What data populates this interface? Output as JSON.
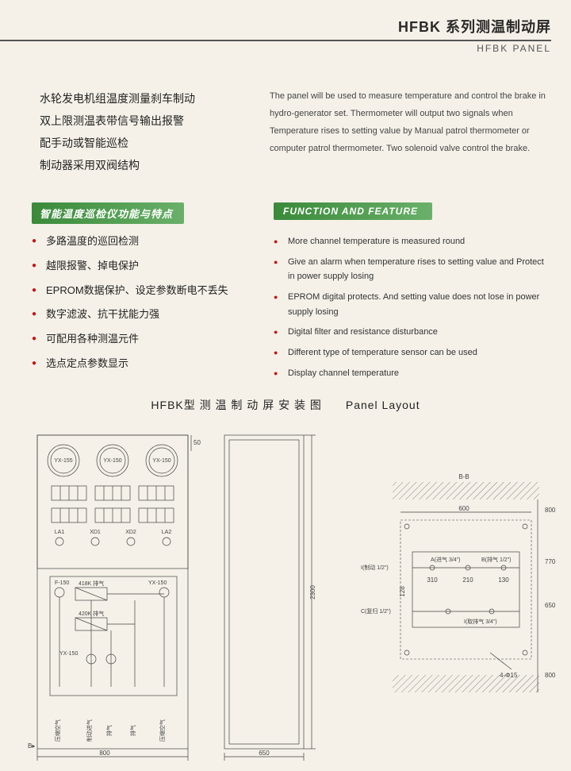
{
  "header": {
    "title_cn": "HFBK 系列测温制动屏",
    "title_en": "HFBK PANEL"
  },
  "intro": {
    "cn": "水轮发电机组温度测量刹车制动\n双上限测温表带信号输出报警\n配手动或智能巡检\n制动器采用双阀结构",
    "en": "The panel will be used to measure temperature and control the brake in hydro-generator set. Thermometer will output two signals when Temperature rises to setting value by Manual patrol thermometer or computer patrol thermometer. Two solenoid valve control the brake."
  },
  "features": {
    "title_cn": "智能温度巡检仪功能与特点",
    "title_en": "FUNCTION AND FEATURE",
    "items_cn": [
      "多路温度的巡回检测",
      "越限报警、掉电保护",
      "EPROM数据保护、设定参数断电不丢失",
      "数字滤波、抗干扰能力强",
      "可配用各种测温元件",
      "选点定点参数显示"
    ],
    "items_en": [
      "More channel temperature is measured round",
      "Give an alarm when temperature rises to setting value and Protect in power supply losing",
      "EPROM digital protects. And setting value does not lose in power supply losing",
      "Digital filter and resistance disturbance",
      "Different type of temperature sensor can be used",
      "Display channel temperature"
    ]
  },
  "layout": {
    "title": "HFBK型 测 温 制 动 屏 安 装 图  Panel Layout",
    "colors": {
      "bg": "#f5f1e8",
      "line": "#444444",
      "bullet": "#c41414",
      "section": "#3a8a3a"
    },
    "front_panel": {
      "width_mm": 800,
      "gauges": [
        "YX-155",
        "YX-150",
        "YX-150"
      ],
      "indicator_rows": 2,
      "indicator_cols": 3,
      "lamps": [
        "LA1",
        "XD1",
        "XD2",
        "LA2"
      ],
      "schematic_labels": [
        "F-150",
        "418K 排气",
        "420K 排气",
        "YX-150",
        "YX-150"
      ],
      "bottom_labels": [
        "压缩空气",
        "制动进气",
        "排气",
        "排气",
        "压缩空气"
      ]
    },
    "side_panel": {
      "width_mm": 650,
      "height_mm": 2300
    },
    "mount_view": {
      "label": "B-B",
      "outer_width_mm": 600,
      "inner_height_mm": 650,
      "pitch_h_mm": 770,
      "margin_mm": 800,
      "ports": [
        "I(制动 1/2\")",
        "A(进气 3/4\")",
        "B(排气 1/2\")",
        "C(复归 1/2\")",
        "I(取排气 3/4\")"
      ],
      "port_dims": [
        "310",
        "210",
        "130",
        "128"
      ],
      "mounting_holes": "4-Φ15"
    }
  }
}
